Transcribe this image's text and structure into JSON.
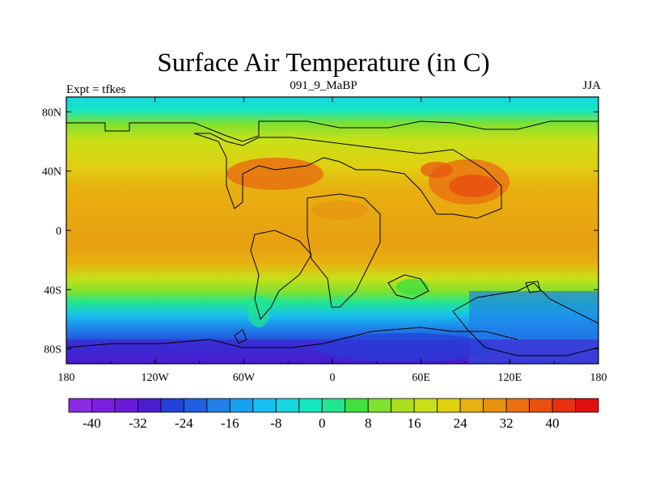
{
  "header": {
    "title": "Surface Air Temperature (in C)",
    "left": "Expt = tfkes",
    "center": "091_9_MaBP",
    "right": "JJA"
  },
  "map": {
    "lon_labels": [
      "180",
      "120W",
      "60W",
      "0",
      "60E",
      "120E",
      "180"
    ],
    "lat_labels": [
      "80N",
      "40N",
      "0",
      "40S",
      "80S"
    ],
    "lon_range": [
      -180,
      180
    ],
    "lat_range": [
      -90,
      90
    ]
  },
  "colorbar": {
    "labels": [
      "-40",
      "-32",
      "-24",
      "-16",
      "-8",
      "0",
      "8",
      "16",
      "24",
      "32",
      "40"
    ],
    "colors": [
      "#8a2be2",
      "#7b1fe0",
      "#6a1bd8",
      "#4b1cd0",
      "#2440d8",
      "#1f5fe0",
      "#1f80e8",
      "#1aa0f0",
      "#19bff0",
      "#17d6e0",
      "#16e6c0",
      "#20e690",
      "#40e040",
      "#80e030",
      "#a8e020",
      "#c8e018",
      "#e0d010",
      "#e8b010",
      "#e89010",
      "#e87010",
      "#e85010",
      "#e83010",
      "#e01010"
    ]
  }
}
